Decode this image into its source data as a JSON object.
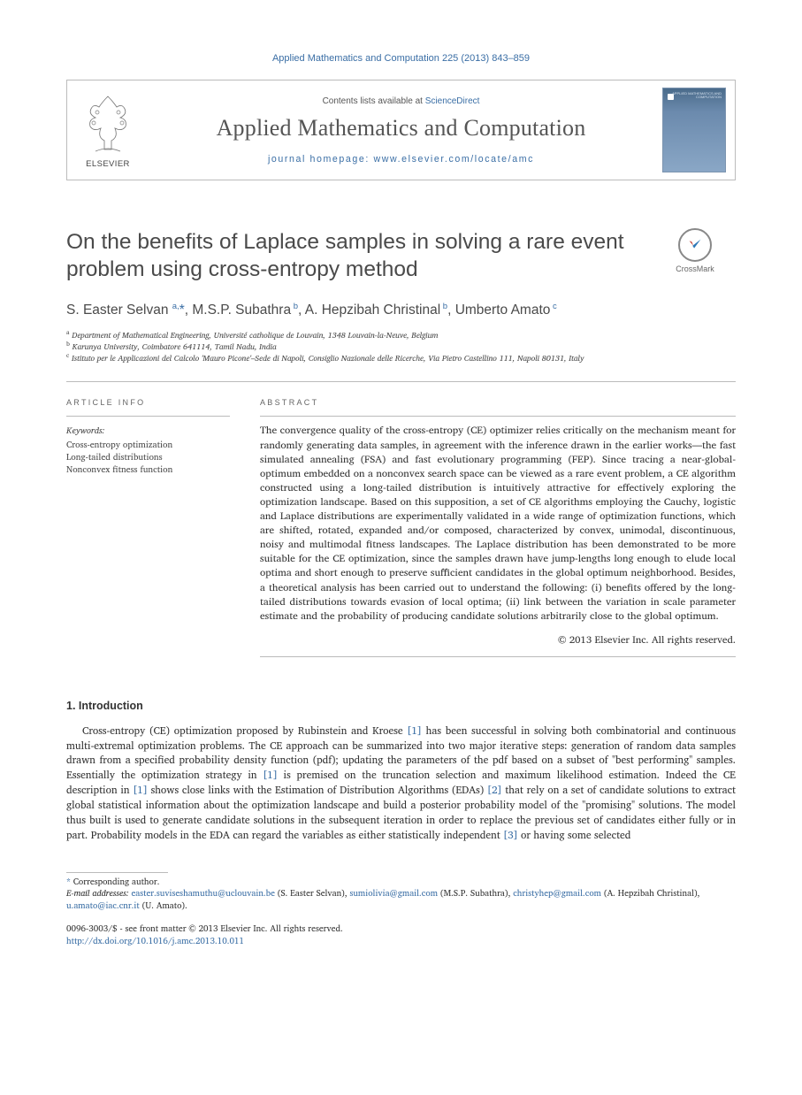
{
  "citation": "Applied Mathematics and Computation 225 (2013) 843–859",
  "masthead": {
    "elsevier": "ELSEVIER",
    "contents_line_prefix": "Contents lists available at ",
    "sciencedirect": "ScienceDirect",
    "journal_name": "Applied Mathematics and Computation",
    "homepage_prefix": "journal homepage: ",
    "homepage_url": "www.elsevier.com/locate/amc",
    "cover_tag": "APPLIED\nMATHEMATICS\nAND\nCOMPUTATION"
  },
  "title": "On the benefits of Laplace samples in solving a rare event problem using cross-entropy method",
  "crossmark": "CrossMark",
  "authors_html": "S. Easter Selvan <sup>a,</sup><span class='star'>*</span>, M.S.P. Subathra<sup> b</sup>, A. Hepzibah Christinal<sup> b</sup>, Umberto Amato<sup> c</sup>",
  "affiliations": [
    {
      "sup": "a",
      "text": "Department of Mathematical Engineering, Université catholique de Louvain, 1348 Louvain-la-Neuve, Belgium"
    },
    {
      "sup": "b",
      "text": "Karunya University, Coimbatore 641114, Tamil Nadu, India"
    },
    {
      "sup": "c",
      "text": "Istituto per le Applicazioni del Calcolo 'Mauro Picone'–Sede di Napoli, Consiglio Nazionale delle Ricerche, Via Pietro Castellino 111, Napoli 80131, Italy"
    }
  ],
  "article_info_label": "ARTICLE INFO",
  "abstract_label": "ABSTRACT",
  "keywords_head": "Keywords:",
  "keywords": [
    "Cross-entropy optimization",
    "Long-tailed distributions",
    "Nonconvex fitness function"
  ],
  "abstract": "The convergence quality of the cross-entropy (CE) optimizer relies critically on the mechanism meant for randomly generating data samples, in agreement with the inference drawn in the earlier works—the fast simulated annealing (FSA) and fast evolutionary programming (FEP). Since tracing a near-global-optimum embedded on a nonconvex search space can be viewed as a rare event problem, a CE algorithm constructed using a long-tailed distribution is intuitively attractive for effectively exploring the optimization landscape. Based on this supposition, a set of CE algorithms employing the Cauchy, logistic and Laplace distributions are experimentally validated in a wide range of optimization functions, which are shifted, rotated, expanded and/or composed, characterized by convex, unimodal, discontinuous, noisy and multimodal fitness landscapes. The Laplace distribution has been demonstrated to be more suitable for the CE optimization, since the samples drawn have jump-lengths long enough to elude local optima and short enough to preserve sufficient candidates in the global optimum neighborhood. Besides, a theoretical analysis has been carried out to understand the following: (i) benefits offered by the long-tailed distributions towards evasion of local optima; (ii) link between the variation in scale parameter estimate and the probability of producing candidate solutions arbitrarily close to the global optimum.",
  "copyright": "© 2013 Elsevier Inc. All rights reserved.",
  "section1_head": "1. Introduction",
  "intro_html": "Cross-entropy (CE) optimization proposed by Rubinstein and Kroese <span class='ref-link'>[1]</span> has been successful in solving both combinatorial and continuous multi-extremal optimization problems. The CE approach can be summarized into two major iterative steps: generation of random data samples drawn from a specified probability density function (pdf); updating the parameters of the pdf based on a subset of \"best performing\" samples. Essentially the optimization strategy in <span class='ref-link'>[1]</span> is premised on the truncation selection and maximum likelihood estimation. Indeed the CE description in <span class='ref-link'>[1]</span> shows close links with the Estimation of Distribution Algorithms (EDAs) <span class='ref-link'>[2]</span> that rely on a set of candidate solutions to extract global statistical information about the optimization landscape and build a posterior probability model of the \"promising\" solutions. The model thus built is used to generate candidate solutions in the subsequent iteration in order to replace the previous set of candidates either fully or in part. Probability models in the EDA can regard the variables as either statistically independent <span class='ref-link'>[3]</span> or having some selected",
  "corresponding": "Corresponding author.",
  "emails_label": "E-mail addresses:",
  "emails": [
    {
      "email": "easter.suviseshamuthu@uclouvain.be",
      "who": " (S. Easter Selvan), "
    },
    {
      "email": "sumiolivia@gmail.com",
      "who": " (M.S.P. Subathra), "
    },
    {
      "email": "christyhep@gmail.com",
      "who": " (A. Hepzibah Christinal), "
    },
    {
      "email": "u.amato@iac.cnr.it",
      "who": " (U. Amato)."
    }
  ],
  "footer": {
    "issn": "0096-3003/$ - see front matter © 2013 Elsevier Inc. All rights reserved.",
    "doi": "http://dx.doi.org/10.1016/j.amc.2013.10.011"
  },
  "colors": {
    "link": "#3a6ea5",
    "muted": "#4a4a4a",
    "rule": "#bbbbbb"
  }
}
